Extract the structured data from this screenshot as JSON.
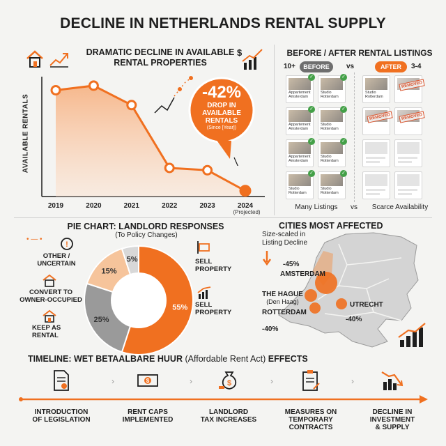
{
  "title": "DECLINE IN NETHERLANDS RENTAL SUPPLY",
  "line_chart": {
    "heading_line1": "DRAMATIC DECLINE IN AVAILABLE",
    "heading_line2": "RENTAL PROPERTIES",
    "ylabel": "AVAILABLE RENTALS",
    "callout_value": "-42%",
    "callout_line1": "DROP IN",
    "callout_line2": "AVAILABLE",
    "callout_line3": "RENTALS",
    "callout_note": "(Since [Year])",
    "projected_note": "(Projected)"
  },
  "chart_data": {
    "type": "line",
    "x": [
      "2019",
      "2020",
      "2021",
      "2022",
      "2023",
      "2024"
    ],
    "y": [
      0.93,
      0.97,
      0.8,
      0.25,
      0.23,
      0.05
    ],
    "xlabel": "",
    "ylabel": "AVAILABLE RENTALS",
    "ylim": [
      0,
      1
    ],
    "grid": false
  },
  "before_after": {
    "heading": "BEFORE / AFTER RENTAL LISTINGS",
    "before_count": "10+",
    "before_label": "BEFORE",
    "vs": "vs",
    "after_label": "AFTER",
    "after_count": "3-4",
    "before_caption": "Many Listings",
    "caption_vs": "vs",
    "after_caption": "Scarce Availability",
    "before_listings": [
      {
        "line1": "Appartement",
        "line2": "Amsterdam"
      },
      {
        "line1": "Studio",
        "line2": "Rotterdam"
      },
      {
        "line1": "Appartement",
        "line2": "Amsterdam"
      },
      {
        "line1": "Studio",
        "line2": "Rotterdam"
      },
      {
        "line1": "Appartement",
        "line2": "Amsterdam"
      },
      {
        "line1": "Studio",
        "line2": "Rotterdam"
      },
      {
        "line1": "Studio",
        "line2": "Rotterdam"
      },
      {
        "line1": "Studio",
        "line2": "Rotterdam"
      }
    ],
    "after_listings": [
      {
        "line1": "Studio",
        "line2": "Rotterdam"
      },
      {
        "stamp": "REMOVED"
      },
      {
        "stamp": "REMOVED"
      },
      {
        "stamp": "REMOVED"
      }
    ]
  },
  "pie": {
    "heading": "PIE CHART: LANDLORD RESPONSES",
    "subheading": "(To Policy Changes)",
    "labels": {
      "other": "OTHER / UNCERTAIN",
      "convert": "CONVERT TO OWNER-OCCUPIED",
      "keep": "KEEP AS RENTAL",
      "sell1": "SELL PROPERTY",
      "sell2": "SELL PROPERTY"
    },
    "slices": [
      {
        "label": "SELL PROPERTY",
        "value": 55,
        "text": "55%",
        "color": "#f07020"
      },
      {
        "label": "KEEP AS RENTAL",
        "value": 25,
        "text": "25%",
        "color": "#9a9a9a"
      },
      {
        "label": "CONVERT TO OWNER-OCCUPIED",
        "value": 15,
        "text": "15%",
        "color": "#f6c49b"
      },
      {
        "label": "OTHER / UNCERTAIN",
        "value": 5,
        "text": "5%",
        "color": "#d8d8d8"
      }
    ]
  },
  "cities": {
    "heading": "CITIES MOST AFFECTED",
    "note_line1": "Size-scaled in",
    "note_line2": "Listing Decline",
    "amsterdam": "AMSTERDAM",
    "amsterdam_pct": "-45%",
    "hague1": "THE HAGUE",
    "hague2": "(Den Haag)",
    "rotterdam": "ROTTERDAM",
    "rotterdam_pct": "-40%",
    "utrecht": "UTRECHT",
    "utrecht_pct": "-40%"
  },
  "timeline": {
    "heading_bold": "TIMELINE: WET BETAALBARE HUUR",
    "heading_normal": "(Affordable Rent Act)",
    "heading_tail": "EFFECTS",
    "steps": [
      {
        "l1": "INTRODUCTION",
        "l2": "OF LEGISLATION",
        "l3": ""
      },
      {
        "l1": "RENT CAPS",
        "l2": "IMPLEMENTED",
        "l3": ""
      },
      {
        "l1": "LANDLORD",
        "l2": "TAX INCREASES",
        "l3": ""
      },
      {
        "l1": "MEASURES ON",
        "l2": "TEMPORARY",
        "l3": "CONTRACTS"
      },
      {
        "l1": "DECLINE IN",
        "l2": "INVESTMENT",
        "l3": "& SUPPLY"
      }
    ]
  },
  "colors": {
    "accent": "#f07020",
    "dark": "#1e1e1e",
    "green": "#43a047",
    "removed": "#d9532c"
  }
}
